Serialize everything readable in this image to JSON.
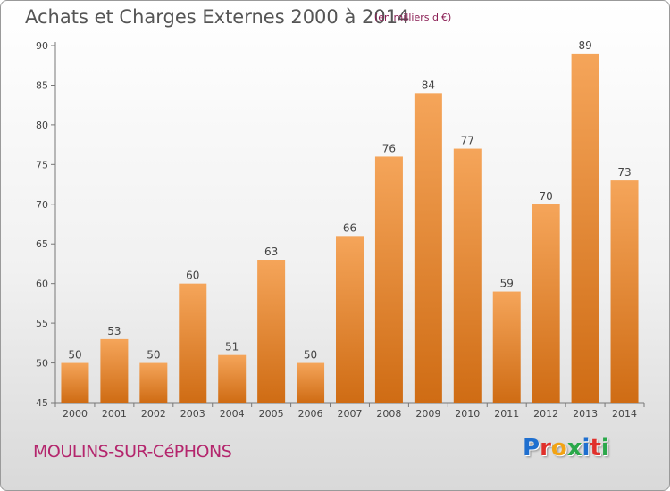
{
  "header": {
    "title": "Achats et Charges Externes 2000 à 2014",
    "unit": "(en milliers d'€)"
  },
  "footer": {
    "place": "MOULINS-SUR-CéPHONS",
    "logo_letters": [
      "P",
      "r",
      "o",
      "x",
      "i",
      "t",
      "i"
    ]
  },
  "colors": {
    "bar_top": "#f5a55a",
    "bar_bottom": "#cf6c14",
    "logo": [
      "#1f6fcf",
      "#e0302b",
      "#f2a313",
      "#2aa84a",
      "#1f6fcf",
      "#e0302b",
      "#2aa84a"
    ]
  },
  "chart_data": {
    "type": "bar",
    "title": "Achats et Charges Externes 2000 à 2014",
    "subtitle": "(en milliers d'€)",
    "categories": [
      "2000",
      "2001",
      "2002",
      "2003",
      "2004",
      "2005",
      "2006",
      "2007",
      "2008",
      "2009",
      "2010",
      "2011",
      "2012",
      "2013",
      "2014"
    ],
    "values": [
      50,
      53,
      50,
      60,
      51,
      63,
      50,
      66,
      76,
      84,
      77,
      59,
      70,
      89,
      73
    ],
    "ylim": [
      45,
      90
    ],
    "yticks": [
      45,
      50,
      55,
      60,
      65,
      70,
      75,
      80,
      85,
      90
    ],
    "grid": false,
    "data_labels": true
  }
}
